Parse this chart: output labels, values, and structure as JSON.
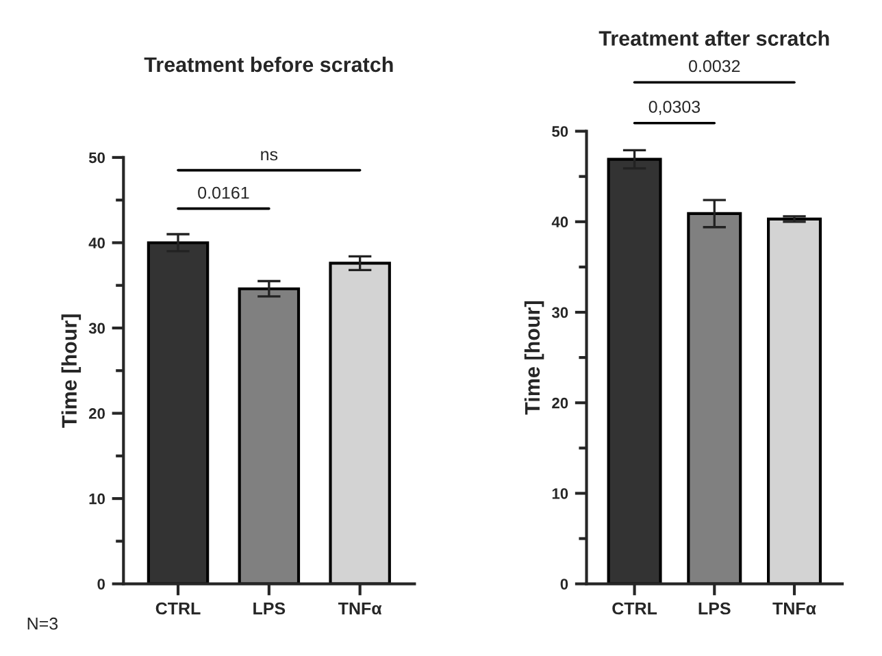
{
  "chart_data": [
    {
      "type": "bar",
      "title": "Treatment before scratch",
      "ylabel": "Time [hour]",
      "categories": [
        "CTRL",
        "LPS",
        "TNFα"
      ],
      "values": [
        40.0,
        34.6,
        37.6
      ],
      "errors": [
        1.0,
        0.9,
        0.8
      ],
      "colors": [
        "#333333",
        "#808080",
        "#d3d3d3"
      ],
      "ylim": [
        0,
        50
      ],
      "yticks": [
        0,
        10,
        20,
        30,
        40,
        50
      ],
      "grid": false,
      "annotations": [
        "0.0161",
        "ns",
        "N=3"
      ]
    },
    {
      "type": "bar",
      "title": "Treatment after scratch",
      "ylabel": "Time [hour]",
      "categories": [
        "CTRL",
        "LPS",
        "TNFα"
      ],
      "values": [
        46.9,
        40.9,
        40.3
      ],
      "errors": [
        1.0,
        1.5,
        0.3
      ],
      "colors": [
        "#333333",
        "#808080",
        "#d3d3d3"
      ],
      "ylim": [
        0,
        50
      ],
      "yticks": [
        0,
        10,
        20,
        30,
        40,
        50
      ],
      "grid": false,
      "annotations": [
        "0,0303",
        "0.0032"
      ]
    }
  ]
}
